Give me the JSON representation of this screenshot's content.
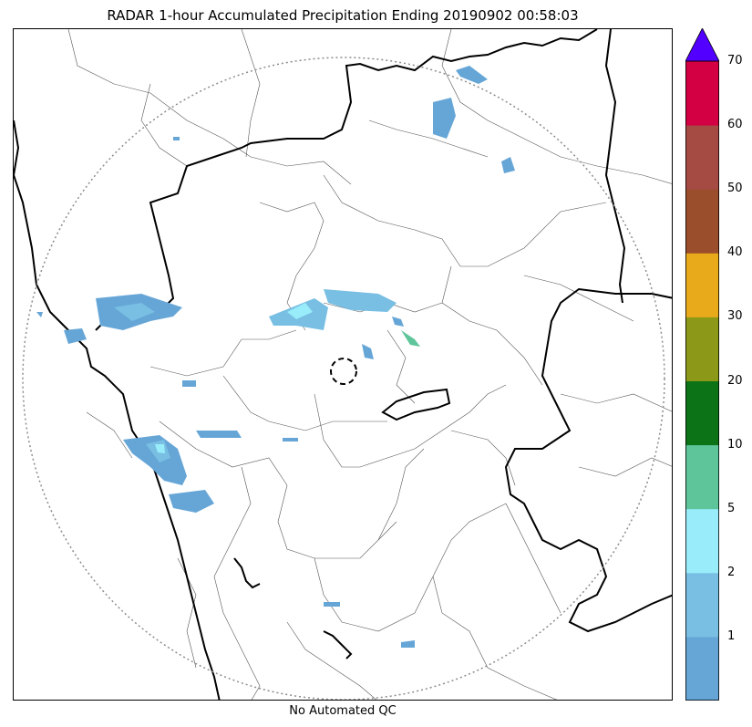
{
  "title": "RADAR 1-hour Accumulated Precipitation Ending 20190902 00:58:03",
  "footer": "No Automated QC",
  "colorbar": {
    "levels": [
      {
        "label": "",
        "color": "#66a6d7"
      },
      {
        "label": "1",
        "color": "#78bfe3"
      },
      {
        "label": "2",
        "color": "#99ecfa"
      },
      {
        "label": "5",
        "color": "#5ec59b"
      },
      {
        "label": "10",
        "color": "#0c7417"
      },
      {
        "label": "20",
        "color": "#8c9818"
      },
      {
        "label": "30",
        "color": "#e8aa1b"
      },
      {
        "label": "40",
        "color": "#9b4e2b"
      },
      {
        "label": "50",
        "color": "#a64a44"
      },
      {
        "label": "60",
        "color": "#d30044"
      }
    ],
    "top_label": "70",
    "extend_color": "#5200ff"
  },
  "colors": {
    "precip_light": "#66a6d7",
    "precip_mid": "#78bfe3",
    "precip_cyan": "#99ecfa",
    "precip_green": "#5ec59b",
    "boundary": "#000000",
    "district": "#555555",
    "range_ring": "#8c8c8c"
  }
}
